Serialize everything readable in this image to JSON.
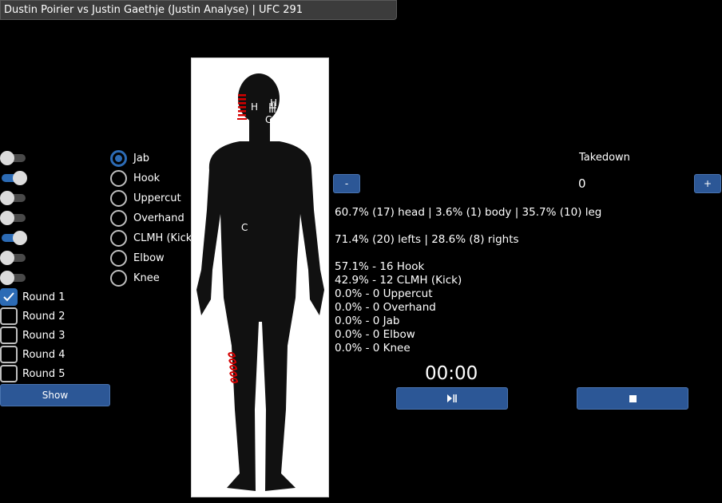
{
  "window": {
    "title": "Dustin Poirier vs Justin Gaethje (Justin  Analyse) | UFC 291"
  },
  "toggles": [
    {
      "on": false
    },
    {
      "on": true
    },
    {
      "on": false
    },
    {
      "on": false
    },
    {
      "on": true
    },
    {
      "on": false
    },
    {
      "on": false
    }
  ],
  "strikes": [
    {
      "label": "Jab",
      "selected": true
    },
    {
      "label": "Hook",
      "selected": false
    },
    {
      "label": "Uppercut",
      "selected": false
    },
    {
      "label": "Overhand",
      "selected": false
    },
    {
      "label": "CLMH (Kick)",
      "selected": false
    },
    {
      "label": "Elbow",
      "selected": false
    },
    {
      "label": "Knee",
      "selected": false
    }
  ],
  "rounds": [
    {
      "label": "Round 1",
      "checked": true
    },
    {
      "label": "Round 2",
      "checked": false
    },
    {
      "label": "Round 3",
      "checked": false
    },
    {
      "label": "Round 4",
      "checked": false
    },
    {
      "label": "Round 5",
      "checked": false
    }
  ],
  "show_button": "Show",
  "body_marks": {
    "head_h": "H",
    "head_h2": "H",
    "head_c": "C",
    "torso_c": "C"
  },
  "takedown": {
    "label": "Takedown",
    "count": "0",
    "minus": "-",
    "plus": "+"
  },
  "stats": {
    "targets": "60.7% (17) head | 3.6% (1) body | 35.7% (10) leg",
    "sides": "71.4% (20) lefts | 28.6% (8) rights",
    "breakdown": [
      "57.1% - 16 Hook",
      "42.9% - 12 CLMH (Kick)",
      "0.0% - 0 Uppercut",
      "0.0% - 0 Overhand",
      "0.0% - 0 Jab",
      "0.0% - 0 Elbow",
      "0.0% - 0 Knee"
    ]
  },
  "timer": {
    "display": "00:00",
    "play_pause_icon": "play-pause-icon",
    "stop_icon": "stop-icon"
  },
  "colors": {
    "accent": "#2c6bb5",
    "button": "#2c5796",
    "mark_red": "#d40000"
  }
}
